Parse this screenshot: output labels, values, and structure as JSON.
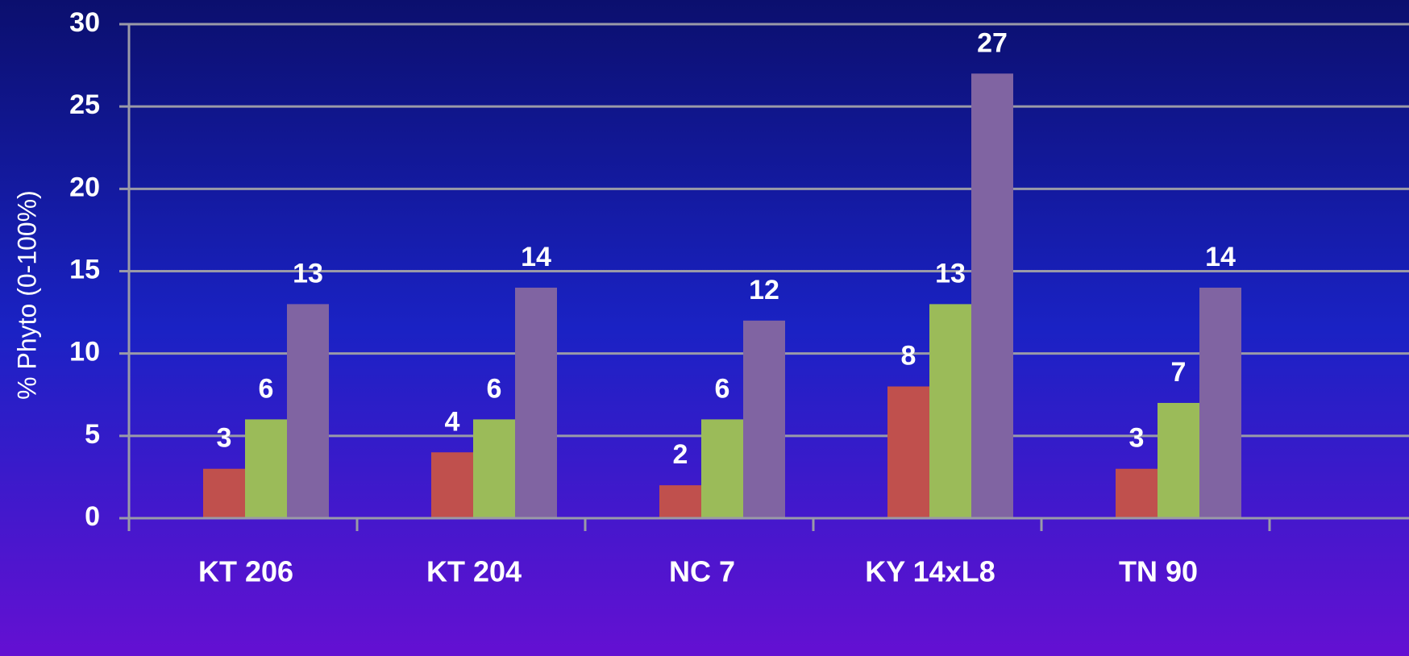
{
  "chart_data": {
    "type": "bar",
    "y_label": "% Phyto (0-100%)",
    "categories": [
      "KT 206",
      "KT 204",
      "NC 7",
      "KY 14xL8",
      "TN 90"
    ],
    "series": [
      {
        "color": "#c0504d",
        "values": [
          3,
          4,
          2,
          8,
          3
        ]
      },
      {
        "color": "#9bbb59",
        "values": [
          6,
          6,
          6,
          13,
          7
        ]
      },
      {
        "color": "#8064a2",
        "values": [
          13,
          14,
          12,
          27,
          14
        ]
      }
    ],
    "ylim": [
      0,
      30
    ],
    "yticks": [
      0,
      5,
      10,
      15,
      20,
      25,
      30
    ],
    "grid": true
  }
}
